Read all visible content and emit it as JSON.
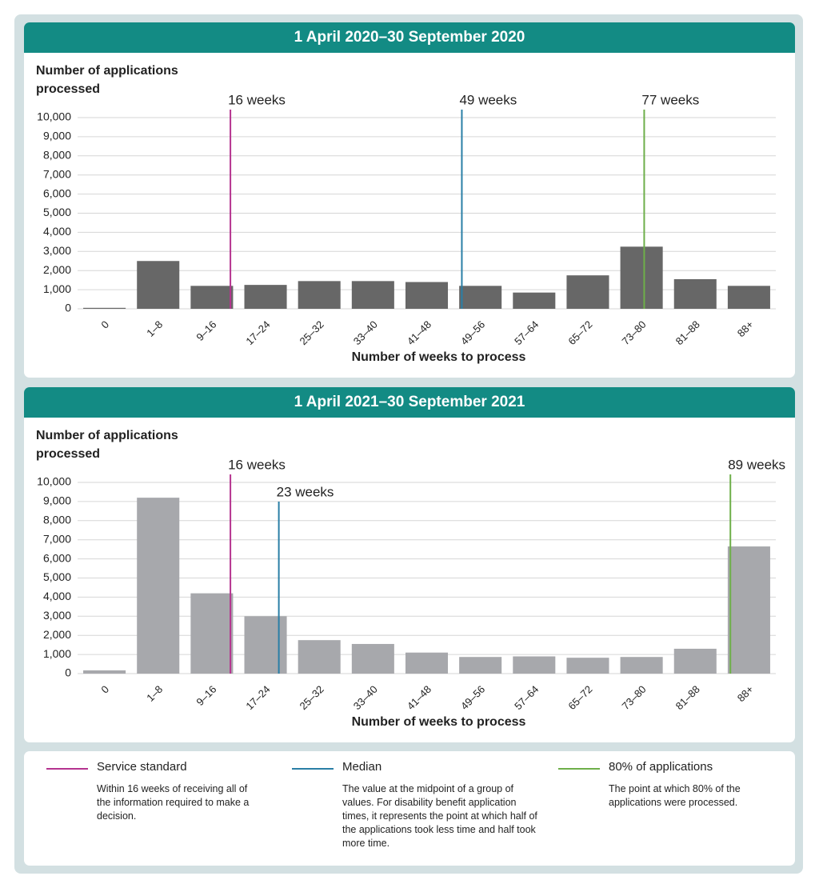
{
  "chart_data": [
    {
      "type": "bar",
      "title": "1 April 2020–30 September 2020",
      "y_label": "Number of applications processed",
      "x_label": "Number of weeks to process",
      "categories": [
        "0",
        "1–8",
        "9–16",
        "17–24",
        "25–32",
        "33–40",
        "41–48",
        "49–56",
        "57–64",
        "65–72",
        "73–80",
        "81–88",
        "88+"
      ],
      "values": [
        50,
        2500,
        1200,
        1250,
        1450,
        1450,
        1400,
        1200,
        850,
        1750,
        3250,
        1550,
        1200
      ],
      "color": "#676767",
      "ylim": [
        0,
        10000
      ],
      "yticks": [
        0,
        {
          "value": 1000,
          "label": "1,000"
        },
        {
          "value": 2000,
          "label": "2,000"
        },
        {
          "value": 3000,
          "label": "3,000"
        },
        {
          "value": 4000,
          "label": "4,000"
        },
        {
          "value": 5000,
          "label": "5,000"
        },
        {
          "value": 6000,
          "label": "6,000"
        },
        {
          "value": 7000,
          "label": "7,000"
        },
        {
          "value": 8000,
          "label": "8,000"
        },
        {
          "value": 9000,
          "label": "9,000"
        },
        {
          "value": 10000,
          "label": "10,000"
        }
      ],
      "grid": true,
      "markers": [
        {
          "value": 16,
          "label": "16 weeks",
          "color": "#b5338f"
        },
        {
          "value": 49,
          "label": "49 weeks",
          "color": "#2a7fa6"
        },
        {
          "value": 77,
          "label": "77 weeks",
          "color": "#6eaf4a"
        }
      ]
    },
    {
      "type": "bar",
      "title": "1 April 2021–30 September 2021",
      "y_label": "Number of applications processed",
      "x_label": "Number of weeks to process",
      "categories": [
        "0",
        "1–8",
        "9–16",
        "17–24",
        "25–32",
        "33–40",
        "41–48",
        "49–56",
        "57–64",
        "65–72",
        "73–80",
        "81–88",
        "88+"
      ],
      "values": [
        170,
        9200,
        4200,
        3000,
        1750,
        1550,
        1100,
        870,
        900,
        830,
        870,
        1300,
        6650
      ],
      "color": "#a7a8ac",
      "ylim": [
        0,
        10000
      ],
      "yticks": [
        0,
        {
          "value": 1000,
          "label": "1,000"
        },
        {
          "value": 2000,
          "label": "2,000"
        },
        {
          "value": 3000,
          "label": "3,000"
        },
        {
          "value": 4000,
          "label": "4,000"
        },
        {
          "value": 5000,
          "label": "5,000"
        },
        {
          "value": 6000,
          "label": "6,000"
        },
        {
          "value": 7000,
          "label": "7,000"
        },
        {
          "value": 8000,
          "label": "8,000"
        },
        {
          "value": 9000,
          "label": "9,000"
        },
        {
          "value": 10000,
          "label": "10,000"
        }
      ],
      "grid": true,
      "markers": [
        {
          "value": 16,
          "label": "16 weeks",
          "color": "#b5338f"
        },
        {
          "value": 23,
          "label": "23 weeks",
          "color": "#2a7fa6"
        },
        {
          "value": 89,
          "label": "89 weeks",
          "color": "#6eaf4a"
        }
      ]
    }
  ],
  "legend": [
    {
      "name": "Service standard",
      "color": "#b5338f",
      "description": "Within 16 weeks of receiving all of the information required to make a decision."
    },
    {
      "name": "Median",
      "color": "#2a7fa6",
      "description": "The value at the midpoint of a group of values. For disability benefit application times, it represents the point at which half of the applications took less time and half took more time."
    },
    {
      "name": "80% of applications",
      "color": "#6eaf4a",
      "description": "The point at which 80% of the applications were processed."
    }
  ]
}
